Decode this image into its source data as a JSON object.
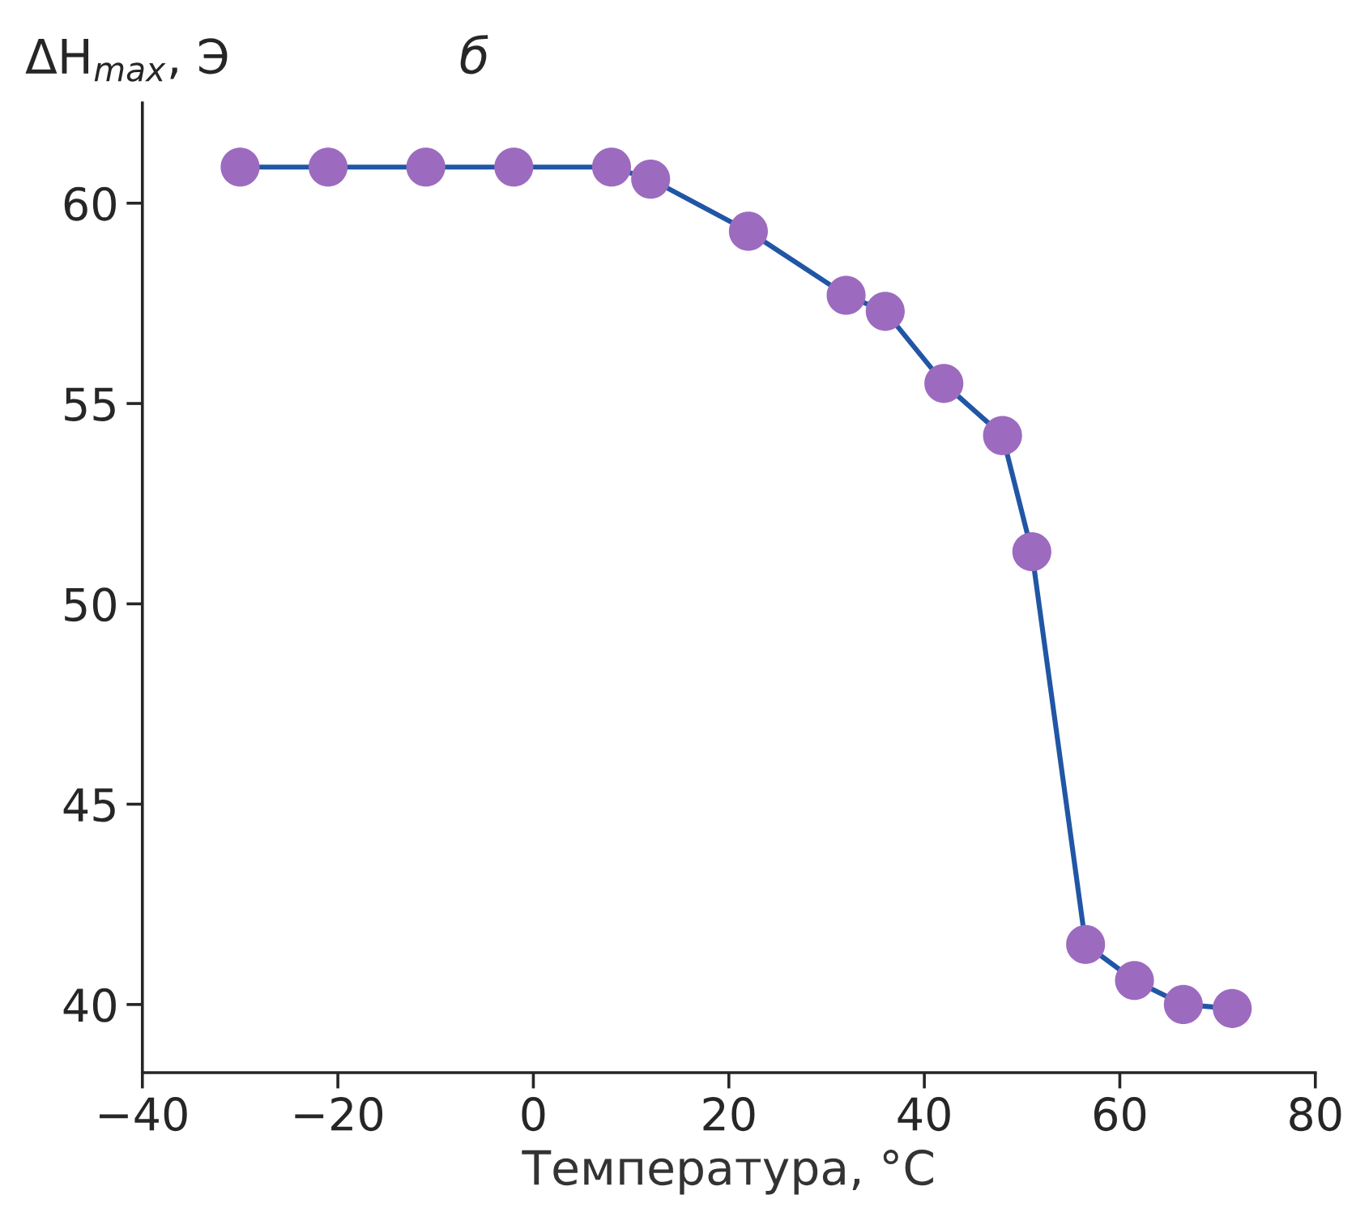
{
  "chart_data": {
    "type": "line",
    "title": "б",
    "xlabel": "Температура, °C",
    "ylabel": "ΔH$_{max}$, Э",
    "x": [
      -30,
      -21,
      -11,
      -2,
      8,
      12,
      22,
      32,
      36,
      42,
      48,
      51,
      56.5,
      61.5,
      66.5,
      71.5
    ],
    "series": [
      {
        "color": "#2156a5",
        "colors": [
          "#9c6bbf",
          "#9c6bbf",
          "#9c6bbf",
          "#9c6bbf",
          "#9c6bbf",
          "#9c6bbf",
          "#9c6bbf",
          "#9c6bbf",
          "#9c6bbf",
          "#9c6bbf",
          "#9c6bbf",
          "#9c6bbf",
          "#9c6bbf",
          "#9c6bbf",
          "#9c6bbf",
          "#9c6bbf"
        ],
        "values": [
          60.9,
          60.9,
          60.9,
          60.9,
          60.9,
          60.6,
          59.3,
          57.7,
          57.3,
          55.5,
          54.2,
          51.3,
          41.5,
          40.6,
          40.0,
          39.9
        ]
      }
    ],
    "xlim": [
      -40,
      80
    ],
    "xticks": [
      {
        "value": -40,
        "label": "−40"
      },
      {
        "value": -20,
        "label": "−20"
      },
      0,
      20,
      40,
      60,
      80
    ],
    "ylim": [
      38.3,
      62.5
    ],
    "yticks": [
      40,
      45,
      50,
      55,
      60
    ],
    "grid": false,
    "legend": false,
    "marker": "circle",
    "line_style": "solid"
  }
}
